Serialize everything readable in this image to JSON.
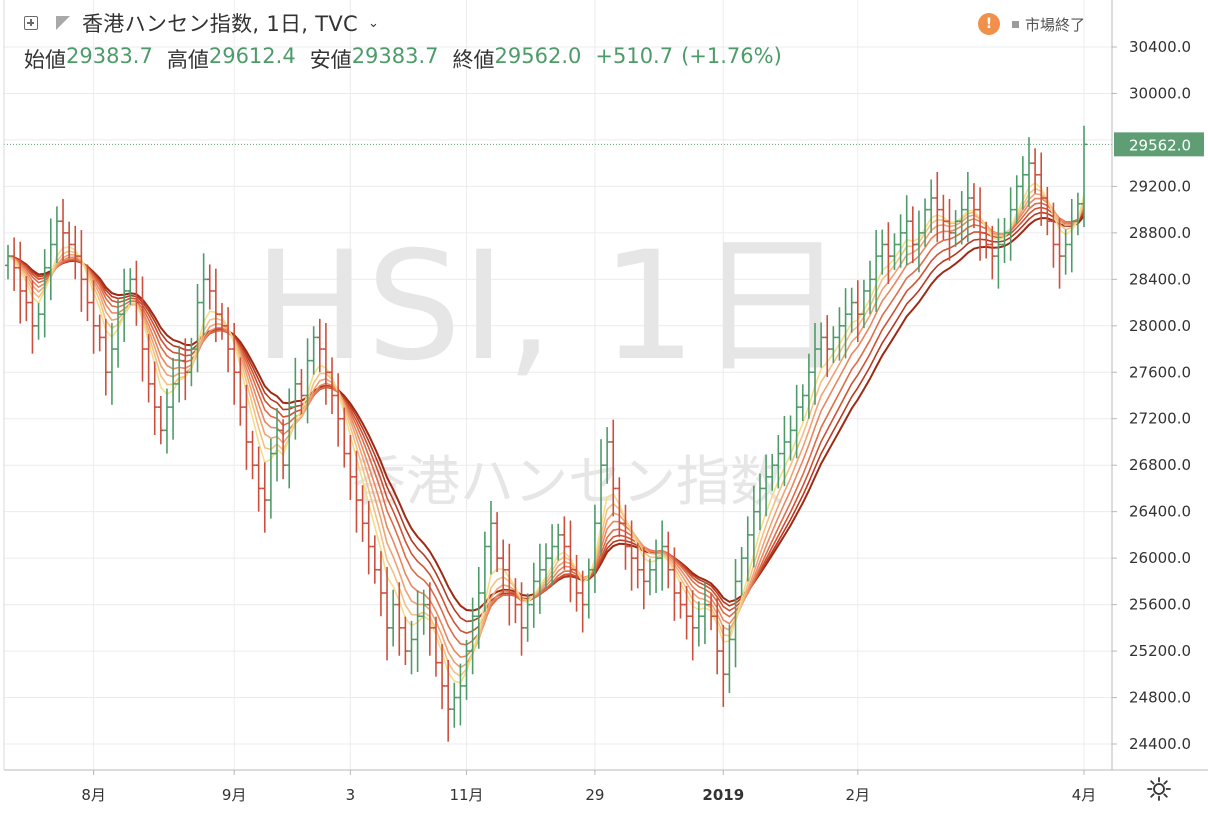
{
  "header": {
    "title": "香港ハンセン指数, 1日, TVC",
    "open_label": "始値",
    "open_value": "29383.7",
    "high_label": "高値",
    "high_value": "29612.4",
    "low_label": "安値",
    "low_value": "29383.7",
    "close_label": "終値",
    "close_value": "29562.0",
    "change": "+510.7",
    "change_pct": "(+1.76%)"
  },
  "status": {
    "market_text": "市場終了",
    "warn_symbol": "!"
  },
  "watermark": {
    "main": "HSI, 1日",
    "sub": "香港ハンセン指数"
  },
  "colors": {
    "up": "#4e9b6a",
    "down": "#cc4e3c",
    "price_label_bg": "#5f9e74",
    "ribbon": [
      "#9e2a14",
      "#b83a22",
      "#cf5234",
      "#df6c48",
      "#e98760",
      "#efa374",
      "#f3c183",
      "#f4dd8a"
    ]
  },
  "chart_data": {
    "type": "ohlc",
    "symbol": "HSI",
    "ylim": [
      24200,
      30700
    ],
    "yticks": [
      "30400.0",
      "30000.0",
      "29200.0",
      "28800.0",
      "28400.0",
      "28000.0",
      "27600.0",
      "27200.0",
      "26800.0",
      "26400.0",
      "26000.0",
      "25600.0",
      "25200.0",
      "24800.0",
      "24400.0"
    ],
    "ytick_values": [
      30400,
      30000,
      29200,
      28800,
      28400,
      28000,
      27600,
      27200,
      26800,
      26400,
      26000,
      25600,
      25200,
      24800,
      24400
    ],
    "last_price": "29562.0",
    "last_price_value": 29562,
    "xticks": [
      {
        "label": "8月",
        "i": 14,
        "bold": false
      },
      {
        "label": "9月",
        "i": 37,
        "bold": false
      },
      {
        "label": "3",
        "i": 56,
        "bold": false
      },
      {
        "label": "11月",
        "i": 75,
        "bold": false
      },
      {
        "label": "29",
        "i": 96,
        "bold": false
      },
      {
        "label": "2019",
        "i": 117,
        "bold": true
      },
      {
        "label": "2月",
        "i": 139,
        "bold": false
      },
      {
        "label": "4月",
        "i": 176,
        "bold": false
      }
    ],
    "closes": [
      28600,
      28500,
      28300,
      28200,
      28000,
      28100,
      28500,
      28700,
      28900,
      28800,
      28700,
      28600,
      28400,
      28200,
      28000,
      27900,
      27600,
      27800,
      28100,
      28300,
      28400,
      28200,
      27800,
      27500,
      27300,
      27100,
      27300,
      27500,
      27700,
      27600,
      27800,
      28200,
      28400,
      28300,
      28100,
      28000,
      27800,
      27600,
      27300,
      27000,
      26800,
      26600,
      26500,
      26900,
      27100,
      26800,
      27300,
      27500,
      27400,
      27700,
      27900,
      27800,
      27600,
      27400,
      27200,
      26900,
      26700,
      26500,
      26300,
      26100,
      25900,
      25700,
      25400,
      25600,
      25400,
      25200,
      25300,
      25500,
      25600,
      25400,
      25100,
      24900,
      24700,
      24800,
      24900,
      25200,
      25500,
      25700,
      26100,
      26300,
      26000,
      25900,
      25700,
      25600,
      25400,
      25600,
      25800,
      25900,
      26000,
      26100,
      26200,
      26100,
      25900,
      25700,
      25600,
      25900,
      26300,
      26800,
      27000,
      26600,
      26300,
      26100,
      26000,
      25900,
      25800,
      25900,
      26000,
      26100,
      25900,
      25700,
      25600,
      25500,
      25400,
      25500,
      25600,
      25500,
      25200,
      25000,
      25300,
      25800,
      26000,
      26200,
      26400,
      26600,
      26700,
      26800,
      26900,
      27000,
      27100,
      27300,
      27400,
      27600,
      27800,
      27900,
      27800,
      27900,
      28000,
      28100,
      28200,
      28100,
      28300,
      28400,
      28600,
      28700,
      28600,
      28700,
      28800,
      28900,
      28700,
      28800,
      29000,
      29100,
      29000,
      28900,
      28800,
      28900,
      29000,
      29100,
      29000,
      28800,
      28700,
      28600,
      28700,
      28800,
      29000,
      29200,
      29300,
      29400,
      29300,
      29100,
      28900,
      28700,
      28600,
      28700,
      28900,
      29050,
      29562
    ]
  }
}
